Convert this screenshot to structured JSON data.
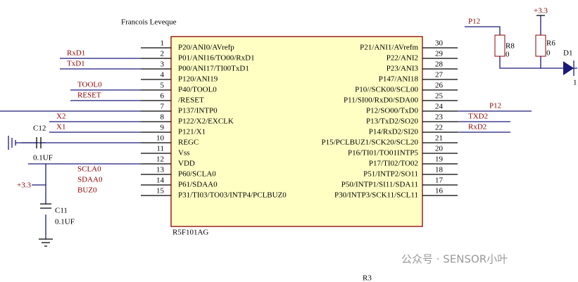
{
  "header": {
    "author": "Francois Leveque"
  },
  "chip": {
    "name": "R5F101AG",
    "left_pins": [
      {
        "number": "1",
        "name": "P20/ANI0/AVrefp"
      },
      {
        "number": "2",
        "name": "P01/ANI16/TO00/RxD1"
      },
      {
        "number": "3",
        "name": "P00/ANI17/TI00TxD1"
      },
      {
        "number": "4",
        "name": "P120/ANI19"
      },
      {
        "number": "5",
        "name": "P40/TOOL0"
      },
      {
        "number": "6",
        "name": "/RESET"
      },
      {
        "number": "7",
        "name": "P137/INTP0"
      },
      {
        "number": "8",
        "name": "P122/X2/EXCLK"
      },
      {
        "number": "9",
        "name": "P121/X1"
      },
      {
        "number": "10",
        "name": "REGC"
      },
      {
        "number": "11",
        "name": "Vss"
      },
      {
        "number": "12",
        "name": "VDD"
      },
      {
        "number": "13",
        "name": "P60/SCLA0"
      },
      {
        "number": "14",
        "name": "P61/SDAA0"
      },
      {
        "number": "15",
        "name": "P31/TI03/TO03/INTP4/PCLBUZ0"
      }
    ],
    "right_pins": [
      {
        "number": "30",
        "name": "P21/ANI1/AVrefm"
      },
      {
        "number": "29",
        "name": "P22/ANI2"
      },
      {
        "number": "28",
        "name": "P23/ANI3"
      },
      {
        "number": "27",
        "name": "P147/ANI18"
      },
      {
        "number": "26",
        "name": "P10//SCK00/SCL00"
      },
      {
        "number": "25",
        "name": "P11/SI00/RxD0/SDA00"
      },
      {
        "number": "24",
        "name": "P12/SO00/TxD0"
      },
      {
        "number": "23",
        "name": "P13/TxD2/SO20"
      },
      {
        "number": "22",
        "name": "P14/RxD2/SI20"
      },
      {
        "number": "21",
        "name": "P15/PCLBUZ1/SCK20/SCL20"
      },
      {
        "number": "20",
        "name": "P16/TI01/TO01INTP5"
      },
      {
        "number": "19",
        "name": "P17/TI02/TO02"
      },
      {
        "number": "18",
        "name": "P51/INTP2/SO11"
      },
      {
        "number": "17",
        "name": "P50/INTP1/SI11/SDA11"
      },
      {
        "number": "16",
        "name": "P30/INTP3/SCK11/SCL11"
      }
    ]
  },
  "net_labels": {
    "rxd1": "RxD1",
    "txd1": "TxD1",
    "tool0": "TOOL0",
    "reset": "RESET",
    "x2": "X2",
    "x1": "X1",
    "scla0": "SCLA0",
    "sdaa0": "SDAA0",
    "buz0": "BUZ0",
    "p12_top": "P12",
    "p12_right": "P12",
    "txd2": "TXD2",
    "rxd2": "RxD2"
  },
  "components": {
    "c12": {
      "ref": "C12",
      "value": "0.1UF"
    },
    "c11": {
      "ref": "C11",
      "value": "0.1UF"
    },
    "r8": {
      "ref": "R8",
      "value": "0"
    },
    "r6": {
      "ref": "R6",
      "value": "0"
    },
    "d1": {
      "ref": "D1",
      "pin": "1"
    },
    "r3": {
      "ref": "R3"
    },
    "supply_left": "+3.3",
    "supply_top": "+3.3"
  },
  "watermark": "公众号 · SENSOR小叶"
}
